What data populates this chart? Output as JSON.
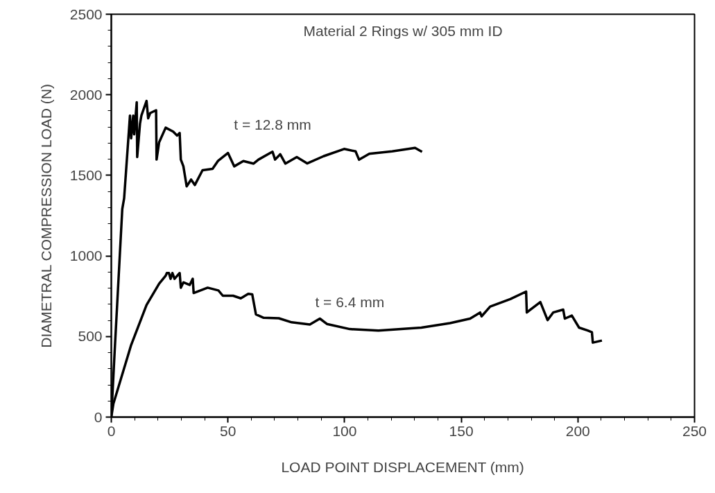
{
  "chart_data": {
    "type": "line",
    "title": "Material 2 Rings w/ 305 mm ID",
    "xlabel": "LOAD POINT DISPLACEMENT (mm)",
    "ylabel": "DIAMETRAL COMPRESSION LOAD (N)",
    "xlim": [
      0,
      250
    ],
    "ylim": [
      0,
      2500
    ],
    "xticks": [
      0,
      50,
      100,
      150,
      200,
      250
    ],
    "yticks": [
      0,
      500,
      1000,
      1500,
      2000,
      2500
    ],
    "grid": false,
    "marker": "none",
    "line_style": "solid",
    "series": [
      {
        "color": "#000000",
        "x": [
          0,
          1.4,
          4.7,
          5.5,
          8,
          8.5,
          9.4,
          9.8,
          10.9,
          11.1,
          12.3,
          12.9,
          15.1,
          15.8,
          16.7,
          19.2,
          19.4,
          20.5,
          23.3,
          26.5,
          28.2,
          29.3,
          29.8,
          30.9,
          32.3,
          34.2,
          35.8,
          39.1,
          43.4,
          45.7,
          50,
          52.7,
          56.6,
          61,
          63.1,
          69.1,
          70.2,
          72.4,
          74.6,
          79.5,
          84,
          91,
          99.8,
          104.7,
          106.2,
          110.6,
          120.4,
          127.3,
          130.2,
          133.2
        ],
        "values": [
          0,
          397,
          1291,
          1358,
          1871,
          1730,
          1871,
          1755,
          1954,
          1614,
          1821,
          1871,
          1962,
          1854,
          1887,
          1904,
          1598,
          1705,
          1796,
          1772,
          1747,
          1763,
          1598,
          1556,
          1432,
          1474,
          1440,
          1532,
          1540,
          1589,
          1639,
          1556,
          1589,
          1573,
          1598,
          1647,
          1598,
          1631,
          1573,
          1614,
          1574,
          1619,
          1664,
          1649,
          1597,
          1634,
          1649,
          1664,
          1671,
          1646
        ]
      },
      {
        "color": "#000000",
        "x": [
          0,
          0.9,
          8.5,
          15.1,
          20.5,
          23.3,
          23.8,
          24.7,
          25.4,
          26.2,
          27.1,
          29.3,
          29.8,
          30.9,
          32.3,
          33.6,
          34.9,
          35.3,
          41.3,
          45.9,
          47.8,
          52.2,
          55.5,
          58.7,
          60.4,
          62,
          65.3,
          71.8,
          77.3,
          85.1,
          89.4,
          92.4,
          102.2,
          114.5,
          132.9,
          145.2,
          153.8,
          158.1,
          158.7,
          162.4,
          171,
          177.8,
          178.1,
          183.9,
          187,
          189.4,
          193.7,
          194.4,
          197.4,
          200.5,
          204.2,
          206,
          206.4,
          210.3
        ],
        "values": [
          0,
          83,
          447,
          695,
          828,
          877,
          894,
          894,
          858,
          894,
          858,
          894,
          803,
          836,
          828,
          820,
          858,
          770,
          803,
          786,
          753,
          753,
          737,
          765,
          762,
          637,
          616,
          613,
          588,
          574,
          611,
          578,
          546,
          537,
          555,
          583,
          611,
          649,
          625,
          686,
          732,
          779,
          649,
          714,
          602,
          649,
          667,
          611,
          630,
          555,
          537,
          527,
          462,
          475
        ]
      }
    ],
    "annotations": [
      "t = 12.8 mm",
      "t = 6.4 mm"
    ]
  }
}
